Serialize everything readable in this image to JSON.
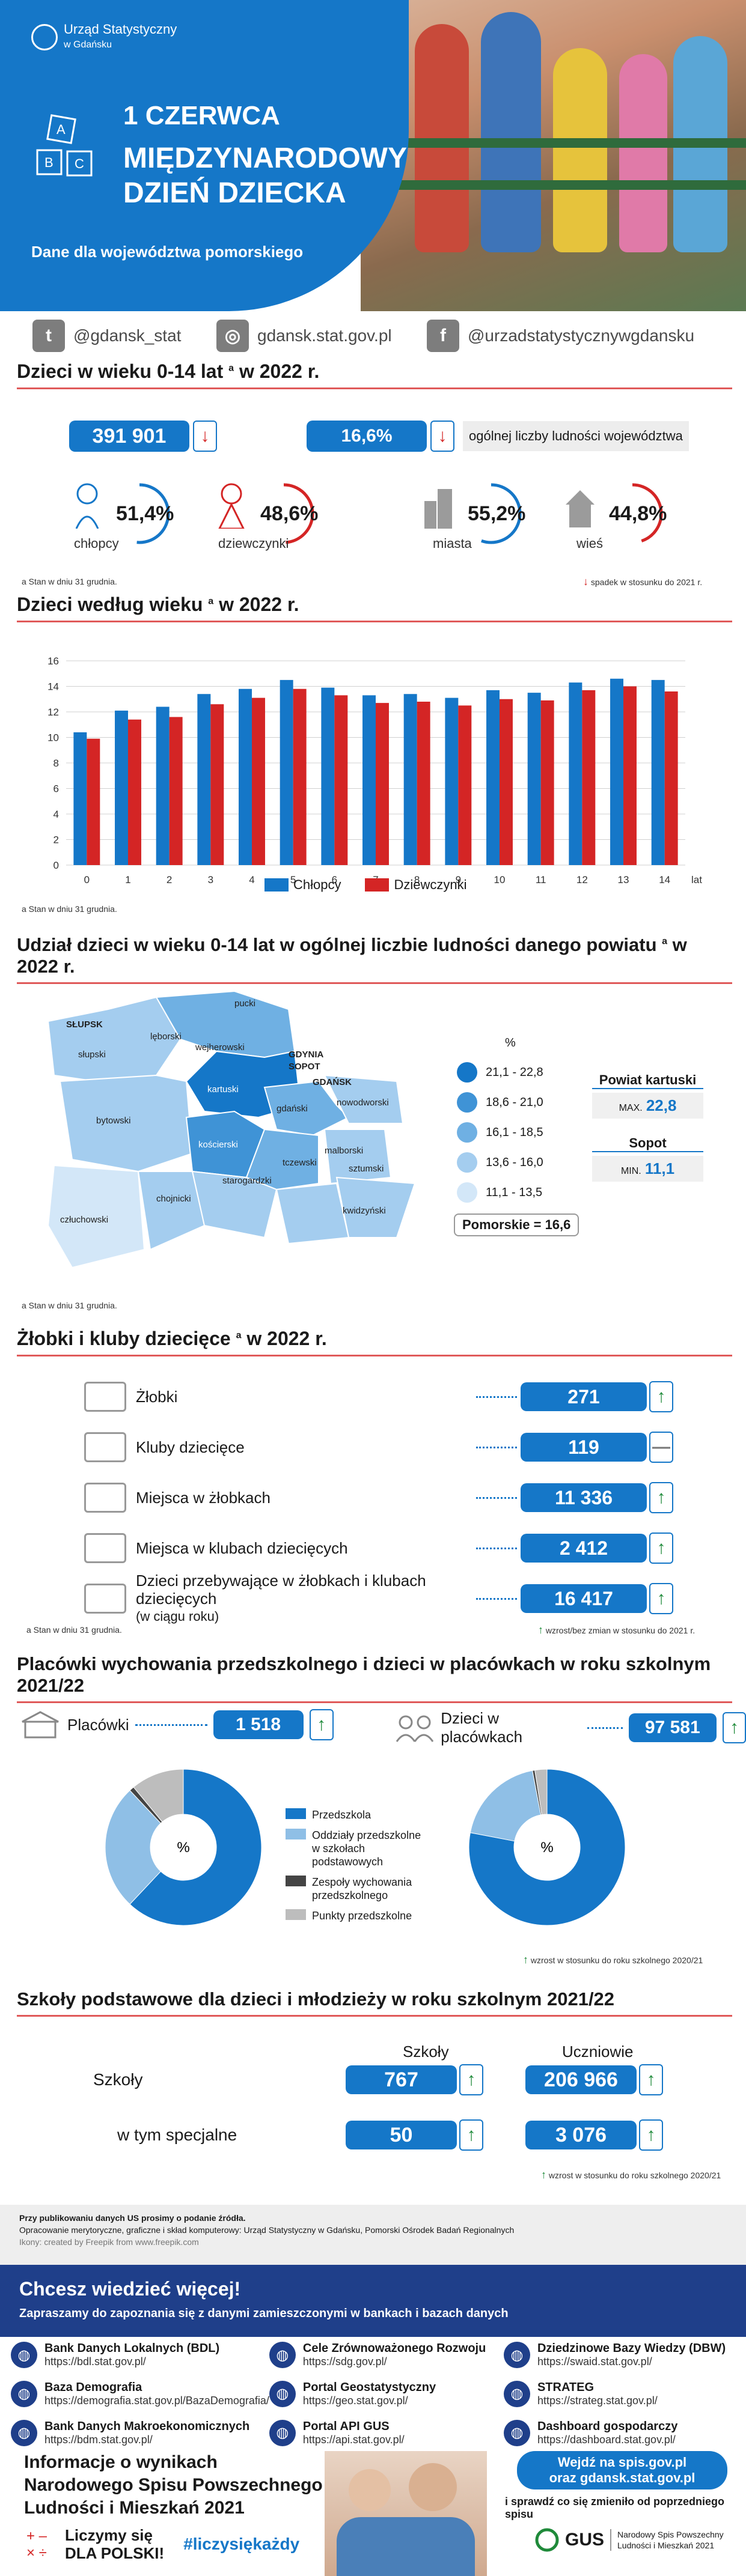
{
  "header": {
    "org_line1": "Urząd Statystyczny",
    "org_line2": "w Gdańsku",
    "date": "1 CZERWCA",
    "title_line1": "MIĘDZYNARODOWY",
    "title_line2": "DZIEŃ DZIECKA",
    "subtitle": "Dane dla województwa pomorskiego"
  },
  "social": [
    {
      "icon": "twitter-icon",
      "text": "@gdansk_stat"
    },
    {
      "icon": "globe-icon",
      "text": "gdansk.stat.gov.pl"
    },
    {
      "icon": "facebook-icon",
      "text": "@urzadstatystycznywgdansku"
    }
  ],
  "section1": {
    "title": "Dzieci w wieku 0-14 lat",
    "title_sup": "a",
    "title_end": " w 2022 r.",
    "total": "391 901",
    "share": "16,6%",
    "share_label": "ogólnej liczby ludności województwa",
    "boys_pct": "51,4%",
    "boys_label": "chłopcy",
    "girls_pct": "48,6%",
    "girls_label": "dziewczynki",
    "cities_pct": "55,2%",
    "cities_label": "miasta",
    "village_pct": "44,8%",
    "village_label": "wieś",
    "footnote": "a Stan w dniu 31 grudnia.",
    "legend_down": "spadek w stosunku do 2021 r."
  },
  "section2": {
    "title": "Dzieci według wieku",
    "title_sup": "a",
    "title_end": " w 2022 r.",
    "footnote": "a Stan w dniu 31 grudnia.",
    "xunit": "lat"
  },
  "chart_data": {
    "type": "bar",
    "categories": [
      "0",
      "1",
      "2",
      "3",
      "4",
      "5",
      "6",
      "7",
      "8",
      "9",
      "10",
      "11",
      "12",
      "13",
      "14"
    ],
    "series": [
      {
        "name": "Chłopcy",
        "color": "#1577c8",
        "values": [
          10.4,
          12.1,
          12.4,
          13.4,
          13.8,
          14.5,
          13.9,
          13.3,
          13.4,
          13.1,
          13.7,
          13.5,
          14.3,
          14.6,
          14.5
        ]
      },
      {
        "name": "Dziewczynki",
        "color": "#d42525",
        "values": [
          9.9,
          11.4,
          11.6,
          12.6,
          13.1,
          13.8,
          13.3,
          12.7,
          12.8,
          12.5,
          13.0,
          12.9,
          13.7,
          14.0,
          13.6
        ]
      }
    ],
    "ylim": [
      0,
      16
    ],
    "yticks": [
      0,
      2,
      4,
      6,
      8,
      10,
      12,
      14,
      16
    ],
    "xlabel": "lat",
    "ylabel": "",
    "grid": true,
    "legend": "bottom"
  },
  "section3": {
    "title": "Udział dzieci w wieku 0-14 lat w ogólnej liczbie ludności danego powiatu",
    "title_sup": "a",
    "title_end": " w 2022 r.",
    "legend_unit": "%",
    "legend": [
      "21,1 - 22,8",
      "18,6 - 21,0",
      "16,1 - 18,5",
      "13,6 - 16,0",
      "11,1 - 13,5"
    ],
    "legend_colors": [
      "#1577c8",
      "#3f93d6",
      "#6fb0e3",
      "#a4cdef",
      "#d3e7f8"
    ],
    "max_title": "Powiat kartuski",
    "max_label": "MAX.",
    "max_val": "22,8",
    "min_title": "Sopot",
    "min_label": "MIN.",
    "min_val": "11,1",
    "region_total": "Pomorskie = 16,6",
    "footnote": "a Stan w dniu 31 grudnia.",
    "districts": [
      "pucki",
      "SŁUPSK",
      "lęborski",
      "wejherowski",
      "GDYNIA",
      "SOPOT",
      "słupski",
      "GDAŃSK",
      "kartuski",
      "bytowski",
      "nowodworski",
      "gdański",
      "kościerski",
      "malborski",
      "tczewski",
      "sztumski",
      "człuchowski",
      "chojnicki",
      "starogardzki",
      "kwidzyński"
    ]
  },
  "section4": {
    "title": "Żłobki i kluby dziecięce",
    "title_sup": "a",
    "title_end": " w 2022 r.",
    "rows": [
      {
        "label": "Żłobki",
        "value": "271",
        "trend": "up"
      },
      {
        "label": "Kluby dziecięce",
        "value": "119",
        "trend": "flat"
      },
      {
        "label": "Miejsca w żłobkach",
        "value": "11 336",
        "trend": "up"
      },
      {
        "label": "Miejsca w klubach dziecięcych",
        "value": "2 412",
        "trend": "up"
      },
      {
        "label": "Dzieci przebywające w żłobkach i klubach dziecięcych",
        "label2": "(w ciągu roku)",
        "value": "16 417",
        "trend": "up"
      }
    ],
    "footnote": "a Stan w dniu 31 grudnia.",
    "legend": "wzrost/bez zmian w stosunku do 2021 r."
  },
  "section5": {
    "title": "Placówki wychowania przedszkolnego i dzieci w placówkach w roku szkolnym 2021/22",
    "left_label": "Placówki",
    "left_value": "1 518",
    "right_label": "Dzieci w placówkach",
    "right_value": "97 581",
    "donut_center": "%",
    "legend": [
      "Przedszkola",
      "Oddziały przedszkolne w szkołach podstawowych",
      "Zespoły wychowania przedszkolnego",
      "Punkty przedszkolne"
    ],
    "legend_colors": [
      "#1577c8",
      "#8fbfe6",
      "#444444",
      "#bdbdbd"
    ],
    "left_shares": [
      0.62,
      0.26,
      0.01,
      0.11
    ],
    "right_shares": [
      0.78,
      0.19,
      0.005,
      0.025
    ],
    "note": "wzrost w stosunku do roku szkolnego 2020/21"
  },
  "section6": {
    "title": "Szkoły podstawowe dla dzieci i młodzieży w roku szkolnym 2021/22",
    "col1": "Szkoły",
    "col2": "Uczniowie",
    "row1_label": "Szkoły",
    "row1_schools": "767",
    "row1_pupils": "206 966",
    "row2_label": "w tym specjalne",
    "row2_schools": "50",
    "row2_pupils": "3 076",
    "note": "wzrost w stosunku do roku szkolnego 2020/21"
  },
  "credits": {
    "line1": "Przy publikowaniu danych US prosimy o podanie źródła.",
    "line2": "Opracowanie merytoryczne, graficzne i skład komputerowy: Urząd Statystyczny w Gdańsku, Pomorski Ośrodek Badań Regionalnych",
    "line3": "Ikony: created by Freepik from www.freepik.com"
  },
  "banner": {
    "title": "Chcesz wiedzieć więcej!",
    "subtitle": "Zapraszamy do zapoznania się z danymi zamieszczonymi w bankach i bazach danych"
  },
  "resources": [
    {
      "title": "Bank Danych Lokalnych (BDL)",
      "url": "https://bdl.stat.gov.pl/"
    },
    {
      "title": "Cele Zrównoważonego Rozwoju",
      "url": "https://sdg.gov.pl/"
    },
    {
      "title": "Dziedzinowe Bazy Wiedzy (DBW)",
      "url": "https://swaid.stat.gov.pl/"
    },
    {
      "title": "Baza Demografia",
      "url": "https://demografia.stat.gov.pl/BazaDemografia/"
    },
    {
      "title": "Portal Geostatystyczny",
      "url": "https://geo.stat.gov.pl/"
    },
    {
      "title": "STRATEG",
      "url": "https://strateg.stat.gov.pl/"
    },
    {
      "title": "Bank Danych Makroekonomicznych",
      "url": "https://bdm.stat.gov.pl/"
    },
    {
      "title": "Portal API GUS",
      "url": "https://api.stat.gov.pl/"
    },
    {
      "title": "Dashboard gospodarczy",
      "url": "https://dashboard.stat.gov.pl/"
    }
  ],
  "census": {
    "line1": "Informacje o wynikach",
    "line2": "Narodowego Spisu Powszechnego",
    "line3": "Ludności i Mieszkań 2021",
    "slogan1": "Liczymy się",
    "slogan2": "DLA POLSKI!",
    "hashtag": "#liczysiękażdy",
    "cta1": "Wejdź na spis.gov.pl",
    "cta2": "oraz gdansk.stat.gov.pl",
    "cta3": "i sprawdź co się zmieniło od poprzedniego spisu",
    "gus": "GUS",
    "gus_line1": "Narodowy Spis Powszechny",
    "gus_line2": "Ludności i Mieszkań 2021"
  }
}
